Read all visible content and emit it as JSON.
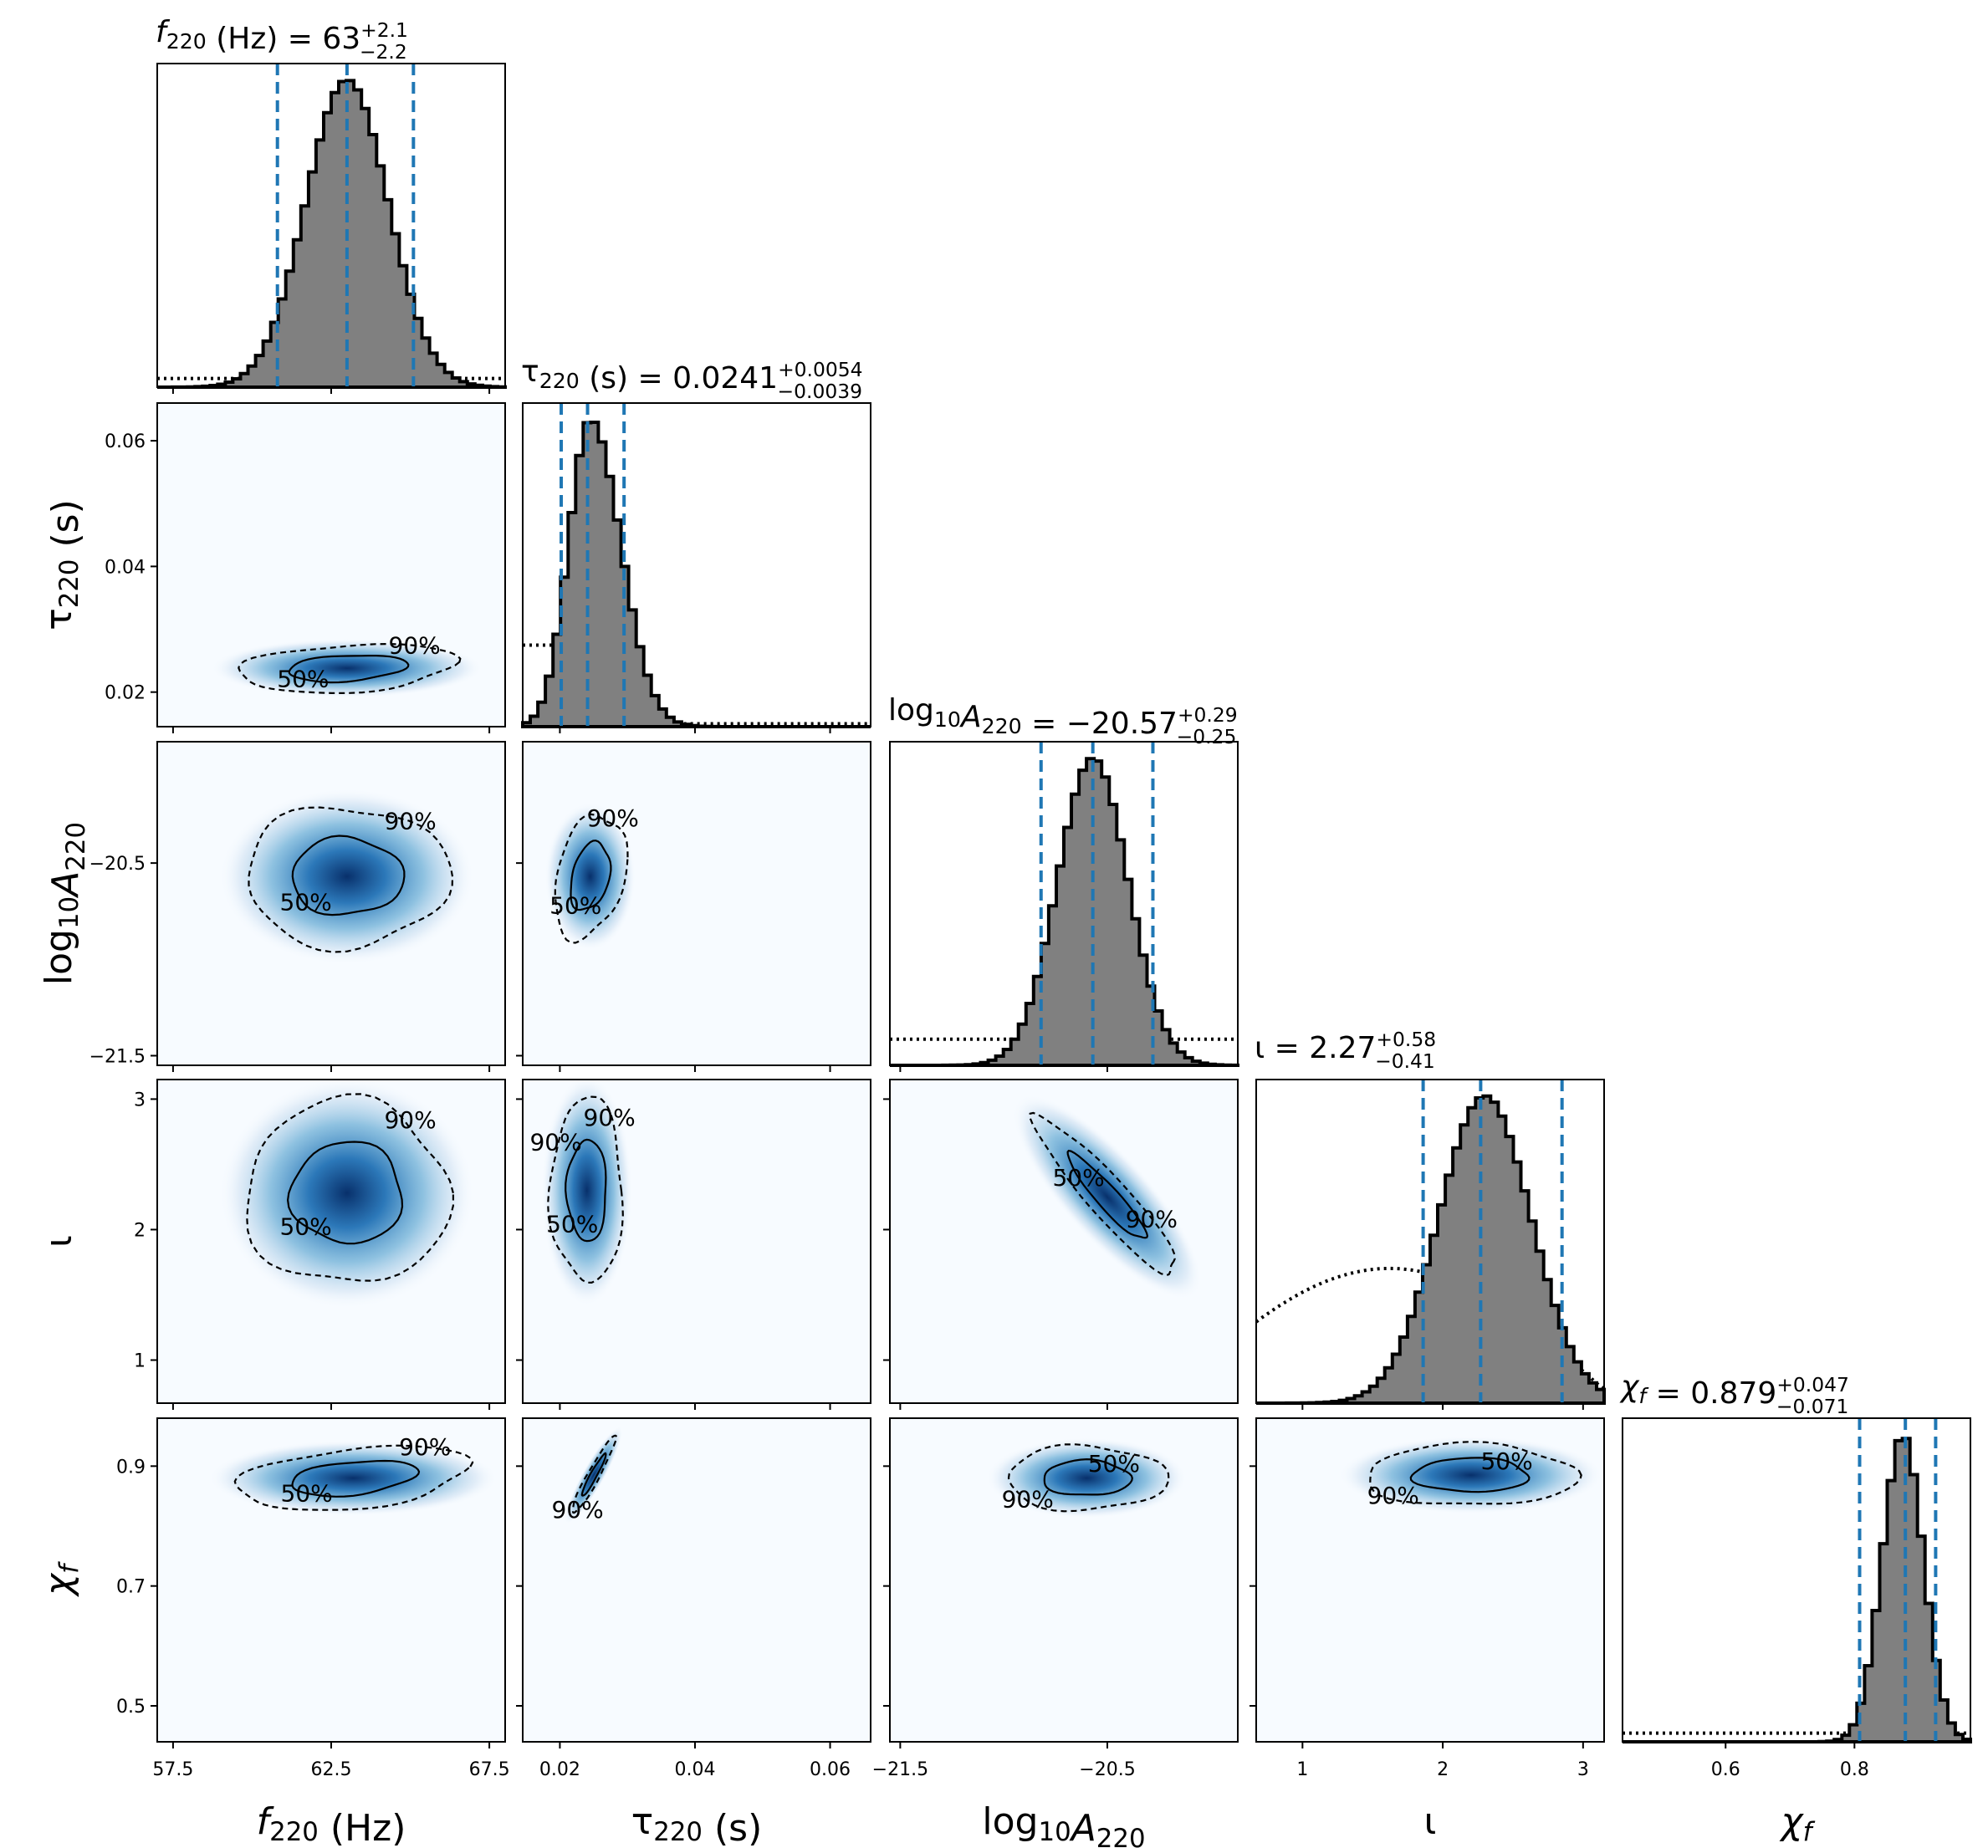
{
  "chart_data": {
    "type": "corner",
    "parameters": [
      {
        "id": "f220",
        "label_main": "f",
        "label_sub": "220",
        "label_unit": " (Hz)",
        "range": [
          57.0,
          68.0
        ],
        "ticks": [
          57.5,
          62.5,
          67.5
        ],
        "tick_labels": [
          "57.5",
          "62.5",
          "67.5"
        ],
        "median": 63,
        "plus": "2.1",
        "minus": "2.2",
        "median_text": "63",
        "hist": {
          "mean": 63.0,
          "sd": 1.3
        },
        "prior": "flat-low"
      },
      {
        "id": "tau220",
        "label_main": "τ",
        "label_sub": "220",
        "label_unit": " (s)",
        "range": [
          0.0145,
          0.066
        ],
        "ticks": [
          0.02,
          0.04,
          0.06
        ],
        "tick_labels": [
          "0.02",
          "0.04",
          "0.06"
        ],
        "median": 0.0241,
        "plus": "0.0054",
        "minus": "0.0039",
        "median_text": "0.0241",
        "hist": {
          "mean": 0.0245,
          "sd": 0.0032
        },
        "prior": "flat-step"
      },
      {
        "id": "logA220",
        "label_main": "log",
        "label_sub": "10",
        "label_extra": "A",
        "label_extra_sub": "220",
        "label_unit": "",
        "range": [
          -21.55,
          -19.87
        ],
        "ticks": [
          -21.5,
          -20.5
        ],
        "tick_labels": [
          "−21.5",
          "−20.5"
        ],
        "median": -20.57,
        "plus": "0.29",
        "minus": "0.25",
        "median_text": "−20.57",
        "hist": {
          "mean": -20.57,
          "sd": 0.17
        },
        "prior": "flat-high"
      },
      {
        "id": "iota",
        "label_main": "ι",
        "label_sub": "",
        "label_unit": "",
        "range": [
          0.67,
          3.15
        ],
        "ticks": [
          1,
          2,
          3
        ],
        "tick_labels": [
          "1",
          "2",
          "3"
        ],
        "median": 2.27,
        "plus": "0.58",
        "minus": "0.41",
        "median_text": "2.27",
        "hist": {
          "mean": 2.3,
          "sd": 0.33
        },
        "prior": "sine"
      },
      {
        "id": "chif",
        "label_main": "χ",
        "label_sub": "f",
        "label_unit": "",
        "range": [
          0.44,
          0.98
        ],
        "ticks": [
          0.5,
          0.7,
          0.9
        ],
        "tick_labels": [
          "0.5",
          "0.7",
          "0.9"
        ],
        "xticks": [
          0.6,
          0.8
        ],
        "xtick_labels": [
          "0.6",
          "0.8"
        ],
        "median": 0.879,
        "plus": "0.047",
        "minus": "0.071",
        "median_text": "0.879",
        "hist": {
          "mean": 0.875,
          "sd": 0.032
        },
        "prior": "flat-low"
      }
    ],
    "pairs": [
      {
        "row": 1,
        "col": 0,
        "cx": 63.0,
        "cy": 0.0238,
        "sx": 1.6,
        "sy": 0.0018,
        "rho": 0.25,
        "labels": [
          "50%",
          "90%"
        ]
      },
      {
        "row": 2,
        "col": 0,
        "cx": 63.0,
        "cy": -20.57,
        "sx": 1.5,
        "sy": 0.17,
        "rho": 0.0,
        "labels": [
          "50%",
          "90%"
        ]
      },
      {
        "row": 2,
        "col": 1,
        "cx": 0.0245,
        "cy": -20.57,
        "sx": 0.0025,
        "sy": 0.15,
        "rho": 0.3,
        "labels": [
          "50%",
          "90%"
        ]
      },
      {
        "row": 3,
        "col": 0,
        "cx": 63.0,
        "cy": 2.28,
        "sx": 1.5,
        "sy": 0.33,
        "rho": 0.0,
        "labels": [
          "50%",
          "90%"
        ]
      },
      {
        "row": 3,
        "col": 1,
        "cx": 0.024,
        "cy": 2.3,
        "sx": 0.0025,
        "sy": 0.33,
        "rho": 0.0,
        "labels": [
          "50%",
          "90%",
          "90%"
        ]
      },
      {
        "row": 3,
        "col": 2,
        "cx": -20.5,
        "cy": 2.25,
        "sx": 0.16,
        "sy": 0.28,
        "rho": -0.93,
        "labels": [
          "50%",
          "90%"
        ]
      },
      {
        "row": 4,
        "col": 0,
        "cx": 63.2,
        "cy": 0.88,
        "sx": 1.7,
        "sy": 0.025,
        "rho": 0.35,
        "labels": [
          "50%",
          "90%"
        ]
      },
      {
        "row": 4,
        "col": 1,
        "cx": 0.025,
        "cy": 0.885,
        "sx": 0.0015,
        "sy": 0.03,
        "rho": 0.95,
        "labels": [
          "90%"
        ]
      },
      {
        "row": 4,
        "col": 2,
        "cx": -20.6,
        "cy": 0.88,
        "sx": 0.18,
        "sy": 0.025,
        "rho": 0.0,
        "labels": [
          "90%",
          "50%"
        ]
      },
      {
        "row": 4,
        "col": 3,
        "cx": 2.2,
        "cy": 0.885,
        "sx": 0.35,
        "sy": 0.024,
        "rho": 0.0,
        "labels": [
          "90%",
          "50%"
        ]
      }
    ],
    "grid": false,
    "colors": {
      "contour_fill": "#08519c",
      "hist_fill": "#808080",
      "median_line": "#1f77b4",
      "prior_line": "#000000"
    }
  }
}
